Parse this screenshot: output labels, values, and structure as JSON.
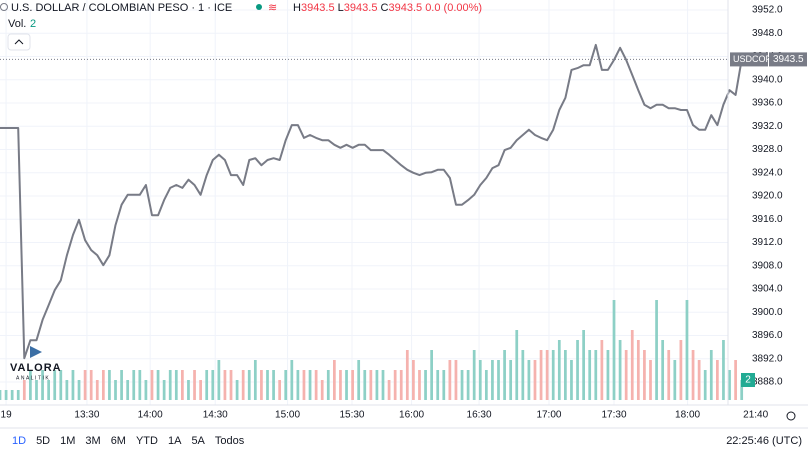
{
  "chart_data": {
    "type": "line",
    "title": "U.S. DOLLAR / COLOMBIAN PESO · 1 · ICE",
    "ohlc": {
      "high_label": "H",
      "high": 3943.5,
      "low_label": "L",
      "low": 3943.5,
      "close_label": "C",
      "close": 3943.5,
      "change": "0.0",
      "change_pct": "(0.00%)"
    },
    "volume_label": "Vol.",
    "volume_value": 2,
    "symbol": "USDCOP",
    "logo": "VALORA",
    "logo_sub": "ANALITIK",
    "x": [
      0,
      1,
      2,
      3,
      4,
      5,
      6,
      7,
      8,
      9,
      10,
      11,
      12,
      13,
      14,
      15,
      16,
      17,
      18,
      19,
      20,
      21,
      22,
      23,
      24,
      25,
      26,
      27,
      28,
      29,
      30,
      31,
      32,
      33,
      34,
      35,
      36,
      37,
      38,
      39,
      40,
      41,
      42,
      43,
      44,
      45,
      46,
      47,
      48,
      49,
      50,
      51,
      52,
      53,
      54,
      55,
      56,
      57,
      58,
      59,
      60,
      61,
      62,
      63,
      64,
      65,
      66,
      67,
      68,
      69,
      70,
      71,
      72,
      73,
      74,
      75,
      76,
      77,
      78,
      79,
      80,
      81,
      82,
      83,
      84,
      85,
      86,
      87,
      88,
      89,
      90,
      91,
      92,
      93,
      94,
      95,
      96,
      97,
      98,
      99,
      100,
      101,
      102,
      103,
      104,
      105,
      106,
      107,
      108,
      109,
      110,
      111,
      112,
      113,
      114,
      115,
      116,
      117,
      118,
      119,
      120,
      121,
      122
    ],
    "series": [
      {
        "name": "USDCOP",
        "color": "#787b86",
        "values": [
          3931.7,
          3931.7,
          3931.7,
          3931.7,
          3892.1,
          3895.2,
          3895.2,
          3898.7,
          3901.2,
          3903.8,
          3905.5,
          3909.8,
          3913.3,
          3915.9,
          3912.4,
          3910.7,
          3909.8,
          3908.1,
          3909.8,
          3915.0,
          3918.5,
          3920.2,
          3920.2,
          3920.2,
          3921.9,
          3916.7,
          3916.7,
          3919.3,
          3921.4,
          3921.9,
          3921.4,
          3922.8,
          3921.9,
          3920.2,
          3923.6,
          3926.2,
          3927.1,
          3926.2,
          3923.6,
          3923.6,
          3921.9,
          3926.2,
          3926.5,
          3925.3,
          3926.2,
          3926.5,
          3926.2,
          3929.6,
          3932.2,
          3932.2,
          3930.0,
          3930.5,
          3930.0,
          3929.6,
          3929.6,
          3928.8,
          3928.3,
          3928.8,
          3928.3,
          3928.8,
          3928.8,
          3927.9,
          3927.9,
          3927.9,
          3927.1,
          3926.2,
          3925.3,
          3924.5,
          3924.0,
          3923.6,
          3924.0,
          3924.1,
          3924.5,
          3924.5,
          3923.1,
          3918.5,
          3918.5,
          3919.3,
          3920.2,
          3921.9,
          3923.1,
          3924.8,
          3925.3,
          3927.9,
          3928.3,
          3929.6,
          3930.5,
          3931.4,
          3930.5,
          3930.0,
          3929.6,
          3931.4,
          3934.8,
          3936.9,
          3941.7,
          3942.0,
          3942.5,
          3942.5,
          3946.0,
          3941.7,
          3941.7,
          3943.4,
          3945.5,
          3943.4,
          3940.8,
          3938.2,
          3935.7,
          3935.1,
          3935.7,
          3935.7,
          3935.1,
          3935.1,
          3934.8,
          3934.8,
          3932.2,
          3931.4,
          3931.4,
          3933.9,
          3932.2,
          3935.7,
          3938.2,
          3937.4,
          3943.5
        ]
      }
    ],
    "volume": {
      "up_color": "#8dd0c6",
      "down_color": "#f5b2ae",
      "ylim": [
        0,
        10
      ],
      "values": [
        1,
        1,
        1,
        1,
        2,
        3,
        2,
        3,
        2,
        3,
        3,
        2,
        3,
        2,
        3,
        3,
        2,
        3,
        3,
        2,
        3,
        2,
        3,
        3,
        2,
        3,
        3,
        2,
        3,
        3,
        3,
        2,
        3,
        2,
        3,
        3,
        4,
        3,
        3,
        2,
        3,
        3,
        4,
        3,
        3,
        3,
        2,
        3,
        4,
        3,
        3,
        3,
        3,
        2,
        3,
        4,
        3,
        3,
        3,
        4,
        3,
        3,
        3,
        3,
        2,
        3,
        3,
        5,
        4,
        3,
        3,
        5,
        3,
        3,
        4,
        4,
        3,
        3,
        5,
        4,
        3,
        4,
        4,
        5,
        4,
        7,
        5,
        4,
        4,
        5,
        5,
        5,
        6,
        5,
        4,
        6,
        7,
        5,
        5,
        6,
        5,
        10,
        6,
        5,
        7,
        6,
        5,
        4,
        10,
        6,
        5,
        4,
        6,
        10,
        5,
        4,
        3,
        5,
        4,
        6,
        3,
        4,
        2
      ]
    },
    "xlim": [
      0,
      126
    ],
    "xticks": [
      {
        "value": 1,
        "label": "19"
      },
      {
        "value": 14.3,
        "label": "13:30"
      },
      {
        "value": 24.7,
        "label": "14:00"
      },
      {
        "value": 35.4,
        "label": "14:30"
      },
      {
        "value": 47.3,
        "label": "15:00"
      },
      {
        "value": 57.9,
        "label": "15:30"
      },
      {
        "value": 67.7,
        "label": "16:00"
      },
      {
        "value": 78.8,
        "label": "16:30"
      },
      {
        "value": 90.3,
        "label": "17:00"
      },
      {
        "value": 101,
        "label": "17:30"
      },
      {
        "value": 113.1,
        "label": "18:00"
      },
      {
        "value": 124.3,
        "label": "21:40"
      }
    ],
    "ylim": [
      3888,
      3952
    ],
    "yticks": [
      {
        "value": 3952,
        "label": "3952.0"
      },
      {
        "value": 3948,
        "label": "3948.0"
      },
      {
        "value": 3944,
        "label": "3944.0"
      },
      {
        "value": 3940,
        "label": "3940.0"
      },
      {
        "value": 3936,
        "label": "3936.0"
      },
      {
        "value": 3932,
        "label": "3932.0"
      },
      {
        "value": 3928,
        "label": "3928.0"
      },
      {
        "value": 3924,
        "label": "3924.0"
      },
      {
        "value": 3920,
        "label": "3920.0"
      },
      {
        "value": 3916,
        "label": "3916.0"
      },
      {
        "value": 3912,
        "label": "3912.0"
      },
      {
        "value": 3908,
        "label": "3908.0"
      },
      {
        "value": 3904,
        "label": "3904.0"
      },
      {
        "value": 3900,
        "label": "3900.0"
      },
      {
        "value": 3896,
        "label": "3896.0"
      },
      {
        "value": 3892,
        "label": "3892.0"
      },
      {
        "value": 3888,
        "label": "3888.0"
      }
    ],
    "grid": true,
    "ranges": [
      "1D",
      "5D",
      "1M",
      "3M",
      "6M",
      "YTD",
      "1A",
      "5A",
      "Todos"
    ],
    "clock": "22:25:46 (UTC)"
  }
}
